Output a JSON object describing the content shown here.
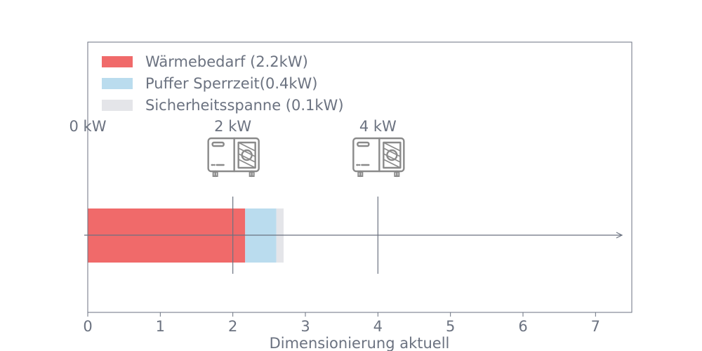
{
  "chart_data": {
    "type": "bar",
    "orientation": "horizontal-stacked",
    "xlabel": "Dimensionierung aktuell",
    "ylabel": "",
    "xlim": [
      0,
      7.5
    ],
    "x_ticks": [
      "0",
      "1",
      "2",
      "3",
      "4",
      "5",
      "6",
      "7"
    ],
    "grid": false,
    "legend_position": "top-left",
    "series": [
      {
        "name": "Wärmebedarf (2.2kW)",
        "value": 2.17,
        "color": "#f06a6a"
      },
      {
        "name": "Puffer Sperrzeit(0.4kW)",
        "value": 0.43,
        "color": "#badcee"
      },
      {
        "name": "Sicherheitsspanne (0.1kW)",
        "value": 0.1,
        "color": "#e4e5e9"
      }
    ],
    "markers": [
      {
        "label": "0 kW",
        "x": 0,
        "icon": "heat-pump-icon"
      },
      {
        "label": "2 kW",
        "x": 2,
        "icon": "heat-pump-icon"
      },
      {
        "label": "4 kW",
        "x": 4,
        "icon": "heat-pump-icon"
      }
    ],
    "axis_color": "#6b7280",
    "text_color": "#6b7280",
    "icon_color": "#8a8a8a",
    "arrow": true
  }
}
